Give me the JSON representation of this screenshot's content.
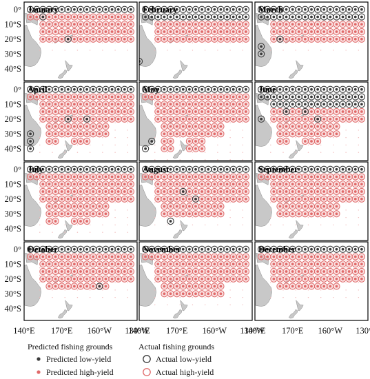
{
  "chart_data": {
    "type": "scatter",
    "layout": "small-multiples 3x4",
    "x_ticks": [
      "140°E",
      "170°E",
      "160°W",
      "130°W"
    ],
    "y_ticks": [
      "0°",
      "10°S",
      "20°S",
      "30°S",
      "40°S"
    ],
    "lon_range_east": [
      140,
      230
    ],
    "lat_range": [
      5,
      -48
    ],
    "panels": [
      {
        "month": "January",
        "low_rows": [
          0
        ],
        "high_rows": [
          -5,
          -10,
          -15,
          -20
        ],
        "south_extent": -20,
        "extra_low": [
          [
            155,
            -5
          ],
          [
            175,
            -20
          ]
        ]
      },
      {
        "month": "February",
        "low_rows": [
          0,
          -5
        ],
        "high_rows": [
          -10,
          -15,
          -20
        ],
        "south_extent": -20,
        "extra_low": [
          [
            140,
            -35
          ]
        ]
      },
      {
        "month": "March",
        "low_rows": [
          0,
          -5
        ],
        "high_rows": [
          -10,
          -15,
          -20
        ],
        "south_extent": -20,
        "extra_low": [
          [
            145,
            -25
          ],
          [
            145,
            -30
          ],
          [
            160,
            -20
          ]
        ]
      },
      {
        "month": "April",
        "low_rows": [
          0
        ],
        "high_rows": [
          -5,
          -10,
          -15,
          -20,
          -25,
          -30,
          -35
        ],
        "south_extent": -35,
        "extra_low": [
          [
            145,
            -30
          ],
          [
            145,
            -35
          ],
          [
            145,
            -40
          ],
          [
            175,
            -20
          ],
          [
            190,
            -20
          ]
        ]
      },
      {
        "month": "May",
        "low_rows": [
          0
        ],
        "high_rows": [
          -5,
          -10,
          -15,
          -20,
          -25,
          -30,
          -35,
          -40
        ],
        "south_extent": -40,
        "extra_low": [
          [
            145,
            -40
          ],
          [
            150,
            -35
          ]
        ]
      },
      {
        "month": "June",
        "low_rows": [
          0,
          -5,
          -10
        ],
        "high_rows": [
          -15,
          -20,
          -25,
          -30,
          -35
        ],
        "south_extent": -35,
        "extra_low": [
          [
            145,
            -20
          ],
          [
            165,
            -15
          ],
          [
            180,
            -15
          ],
          [
            190,
            -20
          ]
        ]
      },
      {
        "month": "July",
        "low_rows": [
          0
        ],
        "high_rows": [
          -5,
          -10,
          -15,
          -20,
          -25,
          -30,
          -35
        ],
        "south_extent": -35,
        "extra_low": []
      },
      {
        "month": "August",
        "low_rows": [
          0
        ],
        "high_rows": [
          -5,
          -10,
          -15,
          -20,
          -25,
          -30
        ],
        "south_extent": -30,
        "extra_low": [
          [
            175,
            -15
          ],
          [
            185,
            -20
          ],
          [
            165,
            -35
          ]
        ]
      },
      {
        "month": "September",
        "low_rows": [
          0
        ],
        "high_rows": [
          -5,
          -10,
          -15,
          -20,
          -25,
          -30
        ],
        "south_extent": -30,
        "extra_low": []
      },
      {
        "month": "October",
        "low_rows": [
          0
        ],
        "high_rows": [
          -5,
          -10,
          -15,
          -20,
          -25
        ],
        "south_extent": -25,
        "extra_low": [
          [
            200,
            -25
          ]
        ]
      },
      {
        "month": "November",
        "low_rows": [
          0
        ],
        "high_rows": [
          -5,
          -10,
          -15,
          -20,
          -25,
          -30
        ],
        "south_extent": -30,
        "extra_low": []
      },
      {
        "month": "December",
        "low_rows": [
          0
        ],
        "high_rows": [
          -5,
          -10,
          -15,
          -20,
          -25
        ],
        "south_extent": -25,
        "extra_low": []
      }
    ],
    "legend": {
      "predicted_title": "Predicted fishing grounds",
      "predicted_low": "Predicted low-yield",
      "predicted_high": "Predicted high-yield",
      "actual_title": "Actual fishing grounds",
      "actual_low": "Actual low-yield",
      "actual_high": "Actual high-yield"
    },
    "colors": {
      "low": "#3a3a3a",
      "high": "#e06a6a",
      "high_fill": "#f6caca",
      "land": "#c8c8c8",
      "land_edge": "#8a8a8a"
    }
  }
}
